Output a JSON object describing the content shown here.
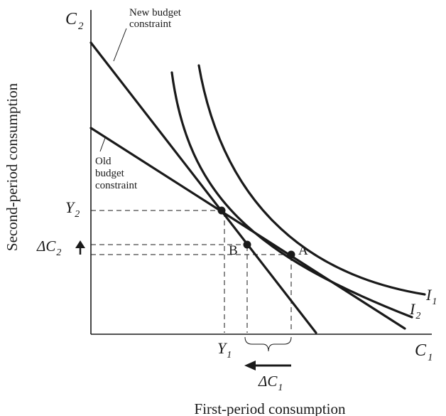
{
  "axes": {
    "x_label": "First-period consumption",
    "y_label": "Second-period consumption",
    "x_end_label": {
      "base": "C",
      "sub": "1"
    },
    "y_end_label": {
      "base": "C",
      "sub": "2"
    }
  },
  "curve_labels": {
    "new_budget": [
      "New budget",
      "constraint"
    ],
    "old_budget": [
      "Old",
      "budget",
      "constraint"
    ],
    "i1": {
      "base": "I",
      "sub": "1"
    },
    "i2": {
      "base": "I",
      "sub": "2"
    }
  },
  "tick_labels": {
    "y1": {
      "base": "Y",
      "sub": "1"
    },
    "y2": {
      "base": "Y",
      "sub": "2"
    },
    "delta_c1": {
      "base": "ΔC",
      "sub": "1"
    },
    "delta_c2": {
      "base": "ΔC",
      "sub": "2"
    }
  },
  "points": {
    "a": "A",
    "b": "B"
  }
}
